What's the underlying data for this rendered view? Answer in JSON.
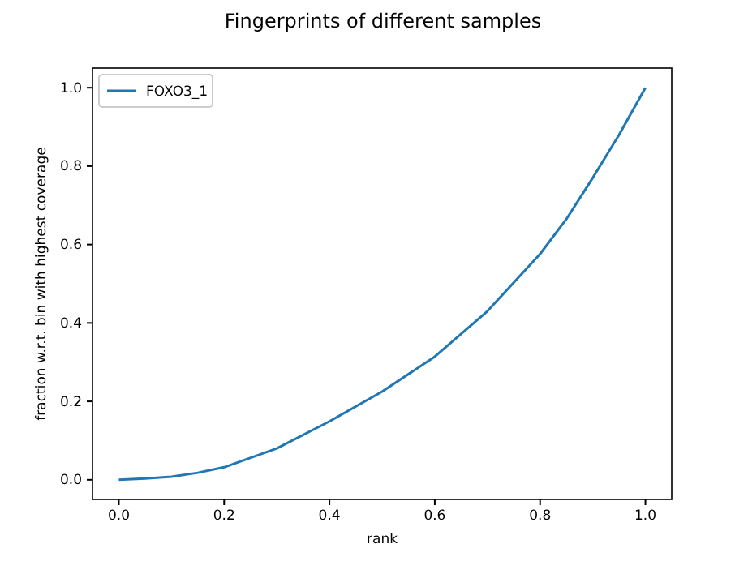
{
  "chart_data": {
    "type": "line",
    "title": "Fingerprints of different samples",
    "xlabel": "rank",
    "ylabel": "fraction w.r.t. bin with highest coverage",
    "x": [
      0,
      0.05,
      0.1,
      0.15,
      0.2,
      0.3,
      0.4,
      0.5,
      0.6,
      0.7,
      0.8,
      0.85,
      0.9,
      0.95,
      1.0
    ],
    "series": [
      {
        "name": "FOXO3_1",
        "color": "#1f77b4",
        "values": [
          0,
          0.003,
          0.008,
          0.018,
          0.032,
          0.08,
          0.149,
          0.225,
          0.314,
          0.43,
          0.576,
          0.665,
          0.77,
          0.88,
          1.0
        ]
      }
    ],
    "xlim": [
      -0.05,
      1.05
    ],
    "ylim": [
      -0.05,
      1.05
    ],
    "xticks": [
      {
        "value": 0,
        "label": "0.0"
      },
      0.2,
      0.4,
      0.6,
      0.8,
      {
        "value": 1,
        "label": "1.0"
      }
    ],
    "yticks": [
      {
        "value": 0,
        "label": "0.0"
      },
      0.2,
      0.4,
      0.6,
      0.8,
      {
        "value": 1,
        "label": "1.0"
      }
    ],
    "legend": "top left",
    "grid": false,
    "line_style": "solid",
    "marker": "none"
  }
}
